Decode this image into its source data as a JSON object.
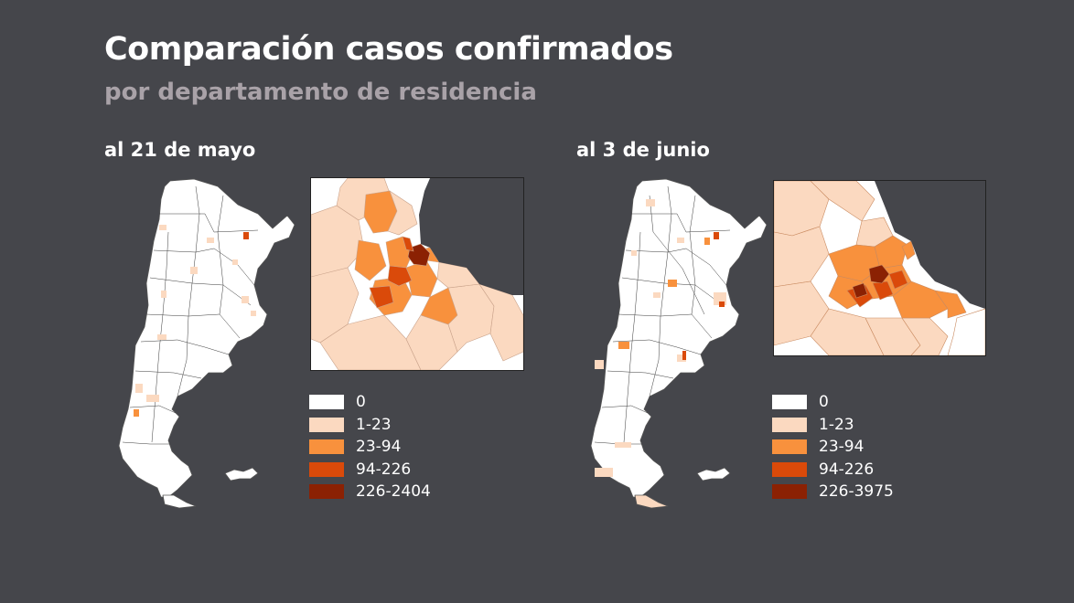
{
  "header": {
    "title": "Comparación casos confirmados",
    "subtitle": "por departamento de residencia"
  },
  "colors": {
    "background": "#45464b",
    "subtitle": "#a9a2a8",
    "class_0": "#ffffff",
    "class_1": "#fbd9c0",
    "class_2": "#f8913d",
    "class_3": "#da4a0a",
    "class_4": "#8b2103"
  },
  "maps": [
    {
      "date_label": "al 21 de mayo",
      "legend": [
        {
          "label": "0",
          "color": "#ffffff"
        },
        {
          "label": "1-23",
          "color": "#fbd9c0"
        },
        {
          "label": "23-94",
          "color": "#f8913d"
        },
        {
          "label": "94-226",
          "color": "#da4a0a"
        },
        {
          "label": "226-2404",
          "color": "#8b2103"
        }
      ]
    },
    {
      "date_label": "al 3 de junio",
      "legend": [
        {
          "label": "0",
          "color": "#ffffff"
        },
        {
          "label": "1-23",
          "color": "#fbd9c0"
        },
        {
          "label": "23-94",
          "color": "#f8913d"
        },
        {
          "label": "94-226",
          "color": "#da4a0a"
        },
        {
          "label": "226-3975",
          "color": "#8b2103"
        }
      ]
    }
  ]
}
